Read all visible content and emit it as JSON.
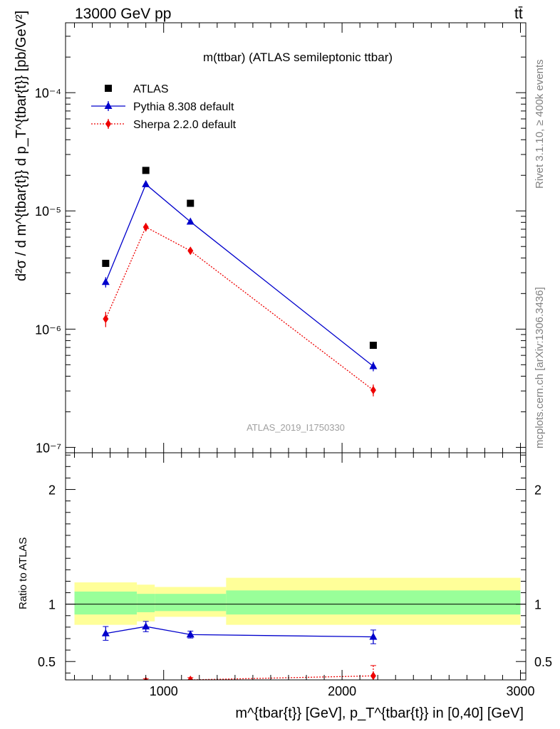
{
  "header": {
    "energy_label": "13000 GeV pp",
    "process_label": "tt̄"
  },
  "side_text": {
    "rivet": "Rivet 3.1.10, ≥ 400k events",
    "site": "mcplots.cern.ch [arXiv:1306.3436]"
  },
  "chart_data": [
    {
      "type": "scatter",
      "title": "m(ttbar) (ATLAS semileptonic ttbar)",
      "watermark": "ATLAS_2019_I1750330",
      "ylabel": "d²σ / d m^{tbar{t}} d p_T^{tbar{t}} [pb/GeV²]",
      "yscale": "log",
      "ylim": [
        9e-08,
        0.00039
      ],
      "xlim": [
        450,
        3030
      ],
      "ytick_labels": [
        "10⁻⁷",
        "10⁻⁶",
        "10⁻⁵",
        "10⁻⁴"
      ],
      "legend_position": "top-left",
      "series": [
        {
          "name": "ATLAS",
          "marker": "square",
          "color": "#000000",
          "x": [
            675,
            900,
            1150,
            2175
          ],
          "values": [
            3.6e-06,
            2.2e-05,
            1.16e-05,
            7.3e-07
          ]
        },
        {
          "name": "Pythia 8.308 default",
          "marker": "triangle",
          "color": "#0000cc",
          "line": "solid",
          "x": [
            675,
            900,
            1150,
            2175
          ],
          "values": [
            2.5e-06,
            1.68e-05,
            8.1e-06,
            4.85e-07
          ],
          "errors": [
            2.5e-07,
            7e-07,
            3e-07,
            4.5e-08
          ]
        },
        {
          "name": "Sherpa 2.2.0 default",
          "marker": "diamond",
          "color": "#ee0000",
          "line": "dotted",
          "x": [
            675,
            900,
            1150,
            2175
          ],
          "values": [
            1.22e-06,
            7.3e-06,
            4.6e-06,
            3.05e-07
          ],
          "errors": [
            1.8e-07,
            6e-07,
            2.5e-07,
            3.5e-08
          ]
        }
      ]
    },
    {
      "type": "scatter",
      "ylabel": "Ratio to ATLAS",
      "xlabel": "m^{tbar{t}} [GeV], p_T^{tbar{t}} in [0,40] [GeV]",
      "xlim": [
        450,
        3030
      ],
      "ylim": [
        0.34,
        2.32
      ],
      "xtick_labels": [
        "1000",
        "2000",
        "3000"
      ],
      "ytick_labels": [
        "0.5",
        "1",
        "2"
      ],
      "reference_line": 1.0,
      "uncertainty_bands": [
        {
          "x_range": [
            500,
            850
          ],
          "inner": [
            0.91,
            1.11
          ],
          "outer": [
            0.82,
            1.19
          ]
        },
        {
          "x_range": [
            850,
            950
          ],
          "inner": [
            0.93,
            1.09
          ],
          "outer": [
            0.85,
            1.17
          ]
        },
        {
          "x_range": [
            950,
            1350
          ],
          "inner": [
            0.94,
            1.09
          ],
          "outer": [
            0.89,
            1.15
          ]
        },
        {
          "x_range": [
            1350,
            3000
          ],
          "inner": [
            0.91,
            1.12
          ],
          "outer": [
            0.82,
            1.23
          ]
        }
      ],
      "band_colors": {
        "inner": "#99ff99",
        "outer": "#ffff99"
      },
      "series": [
        {
          "name": "Pythia 8.308 default",
          "color": "#0000cc",
          "x": [
            675,
            900,
            1150,
            2175
          ],
          "values": [
            0.745,
            0.805,
            0.735,
            0.715
          ],
          "errors": [
            0.06,
            0.045,
            0.03,
            0.06
          ]
        },
        {
          "name": "Sherpa 2.2.0 default",
          "color": "#ee0000",
          "x": [
            675,
            900,
            1150,
            2175
          ],
          "values": [
            0.305,
            0.33,
            0.34,
            0.375
          ],
          "errors": [
            0.03,
            0.02,
            0.02,
            0.09
          ]
        }
      ]
    }
  ]
}
